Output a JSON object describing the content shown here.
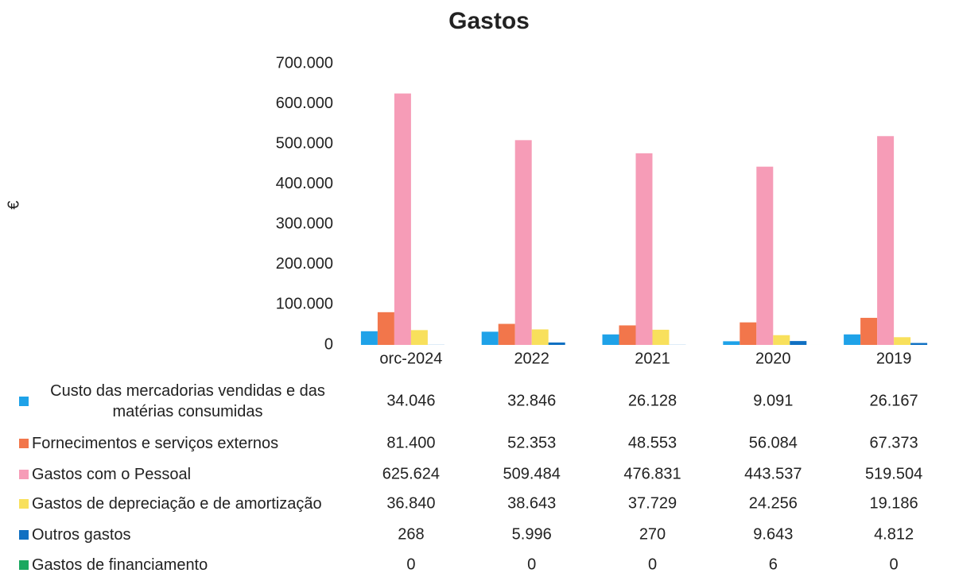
{
  "chart_data": {
    "type": "bar",
    "title": "Gastos",
    "y_label": "€",
    "categories": [
      "orc-2024",
      "2022",
      "2021",
      "2020",
      "2019"
    ],
    "ylim": [
      0,
      700000
    ],
    "yticks": [
      0,
      {
        "value": 100000,
        "label": "100.000"
      },
      {
        "value": 200000,
        "label": "200.000"
      },
      {
        "value": 300000,
        "label": "300.000"
      },
      {
        "value": 400000,
        "label": "400.000"
      },
      {
        "value": 500000,
        "label": "500.000"
      },
      {
        "value": 600000,
        "label": "600.000"
      },
      {
        "value": 700000,
        "label": "700.000"
      }
    ],
    "grid": false,
    "series": [
      {
        "name": "Custo das mercadorias vendidas e das matérias consumidas",
        "color": "#1fa2e8",
        "values": [
          34046,
          32846,
          26128,
          9091,
          26167
        ],
        "value_labels": [
          "34.046",
          "32.846",
          "26.128",
          "9.091",
          "26.167"
        ]
      },
      {
        "name": "Fornecimentos e serviços externos",
        "color": "#f2764b",
        "values": [
          81400,
          52353,
          48553,
          56084,
          67373
        ],
        "value_labels": [
          "81.400",
          "52.353",
          "48.553",
          "56.084",
          "67.373"
        ]
      },
      {
        "name": "Gastos com o Pessoal",
        "color": "#f69cb7",
        "values": [
          625624,
          509484,
          476831,
          443537,
          519504
        ],
        "value_labels": [
          "625.624",
          "509.484",
          "476.831",
          "443.537",
          "519.504"
        ]
      },
      {
        "name": "Gastos de depreciação e de amortização",
        "color": "#f8e05c",
        "values": [
          36840,
          38643,
          37729,
          24256,
          19186
        ],
        "value_labels": [
          "36.840",
          "38.643",
          "37.729",
          "24.256",
          "19.186"
        ]
      },
      {
        "name": "Outros gastos",
        "color": "#1070c2",
        "values": [
          268,
          5996,
          270,
          9643,
          4812
        ],
        "value_labels": [
          "268",
          "5.996",
          "270",
          "9.643",
          "4.812"
        ]
      },
      {
        "name": "Gastos de financiamento",
        "color": "#1aa860",
        "values": [
          0,
          0,
          0,
          6,
          0
        ],
        "value_labels": [
          "0",
          "0",
          "0",
          "6",
          "0"
        ]
      }
    ]
  }
}
